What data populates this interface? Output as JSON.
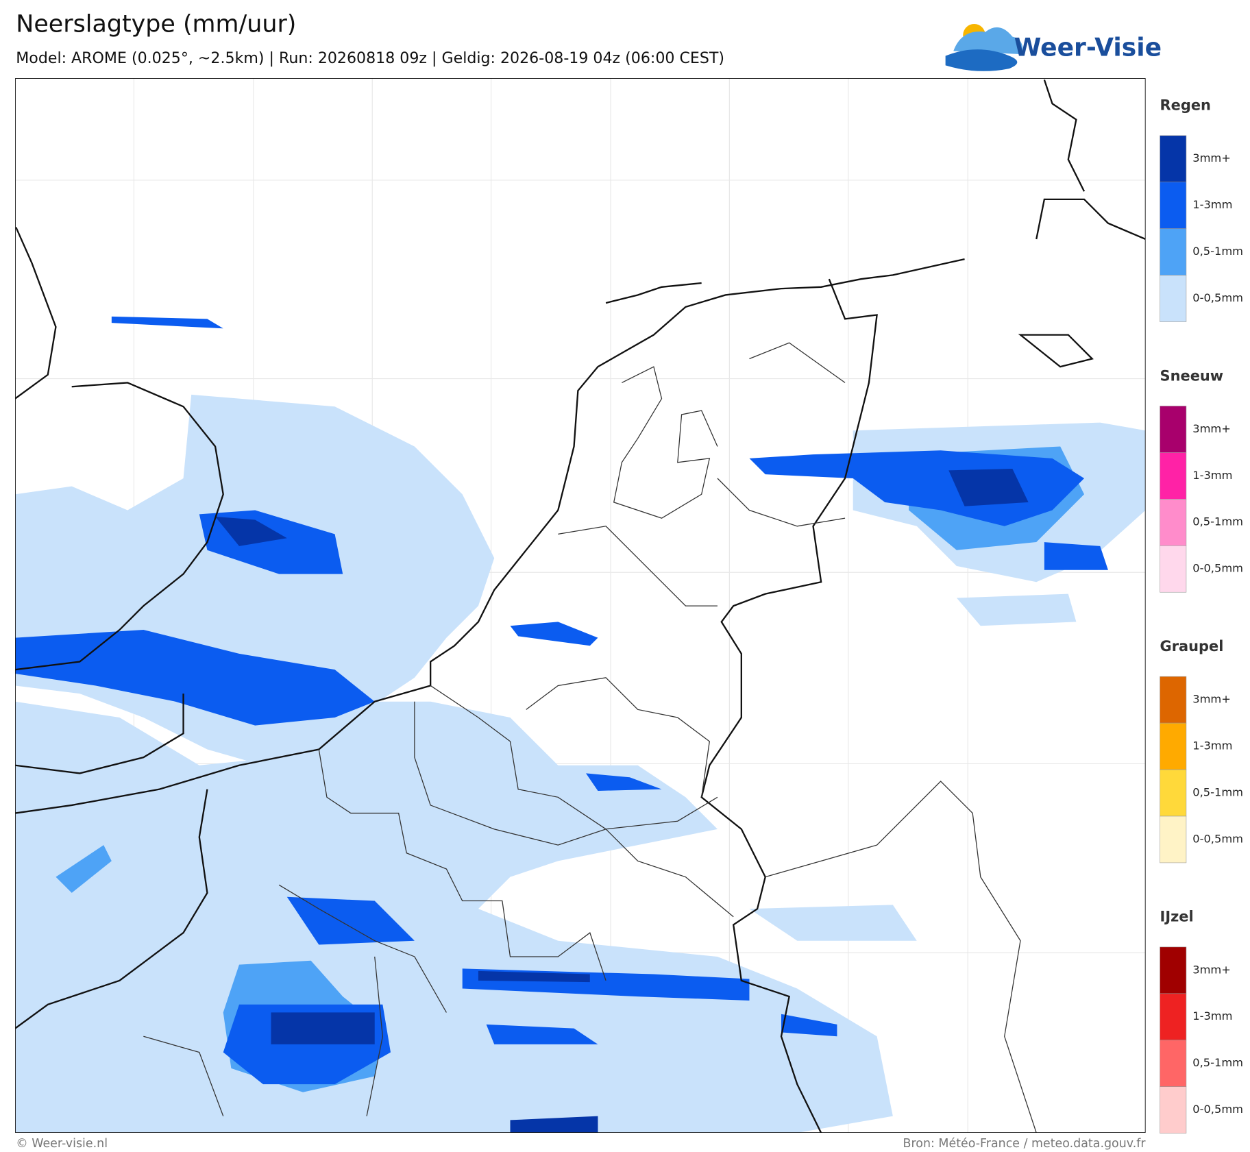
{
  "header": {
    "title": "Neerslagtype (mm/uur)",
    "subtitle": "Model: AROME (0.025°, ~2.5km)  |  Run: 20260818 09z  |  Geldig: 2026-08-19 04z (06:00 CEST)"
  },
  "logo": {
    "text": "Weer-Visie"
  },
  "legend": {
    "groups": [
      {
        "title": "Regen",
        "items": [
          {
            "label": "3mm+",
            "color": "#0535a8"
          },
          {
            "label": "1-3mm",
            "color": "#0b5cf0"
          },
          {
            "label": "0,5-1mm",
            "color": "#4ea3f6"
          },
          {
            "label": "0-0,5mm",
            "color": "#c9e2fb"
          }
        ]
      },
      {
        "title": "Sneeuw",
        "items": [
          {
            "label": "3mm+",
            "color": "#a8006c"
          },
          {
            "label": "1-3mm",
            "color": "#ff22a6"
          },
          {
            "label": "0,5-1mm",
            "color": "#ff8ccb"
          },
          {
            "label": "0-0,5mm",
            "color": "#ffd8ec"
          }
        ]
      },
      {
        "title": "Graupel",
        "items": [
          {
            "label": "3mm+",
            "color": "#dd6600"
          },
          {
            "label": "1-3mm",
            "color": "#ffaa00"
          },
          {
            "label": "0,5-1mm",
            "color": "#ffd93a"
          },
          {
            "label": "0-0,5mm",
            "color": "#fff3c6"
          }
        ]
      },
      {
        "title": "IJzel",
        "items": [
          {
            "label": "3mm+",
            "color": "#a00000"
          },
          {
            "label": "1-3mm",
            "color": "#ee2222"
          },
          {
            "label": "0,5-1mm",
            "color": "#ff6666"
          },
          {
            "label": "0-0,5mm",
            "color": "#ffcccc"
          }
        ]
      }
    ]
  },
  "footer": {
    "left": "© Weer-visie.nl",
    "right": "Bron: Météo-France / meteo.data.gouv.fr"
  }
}
